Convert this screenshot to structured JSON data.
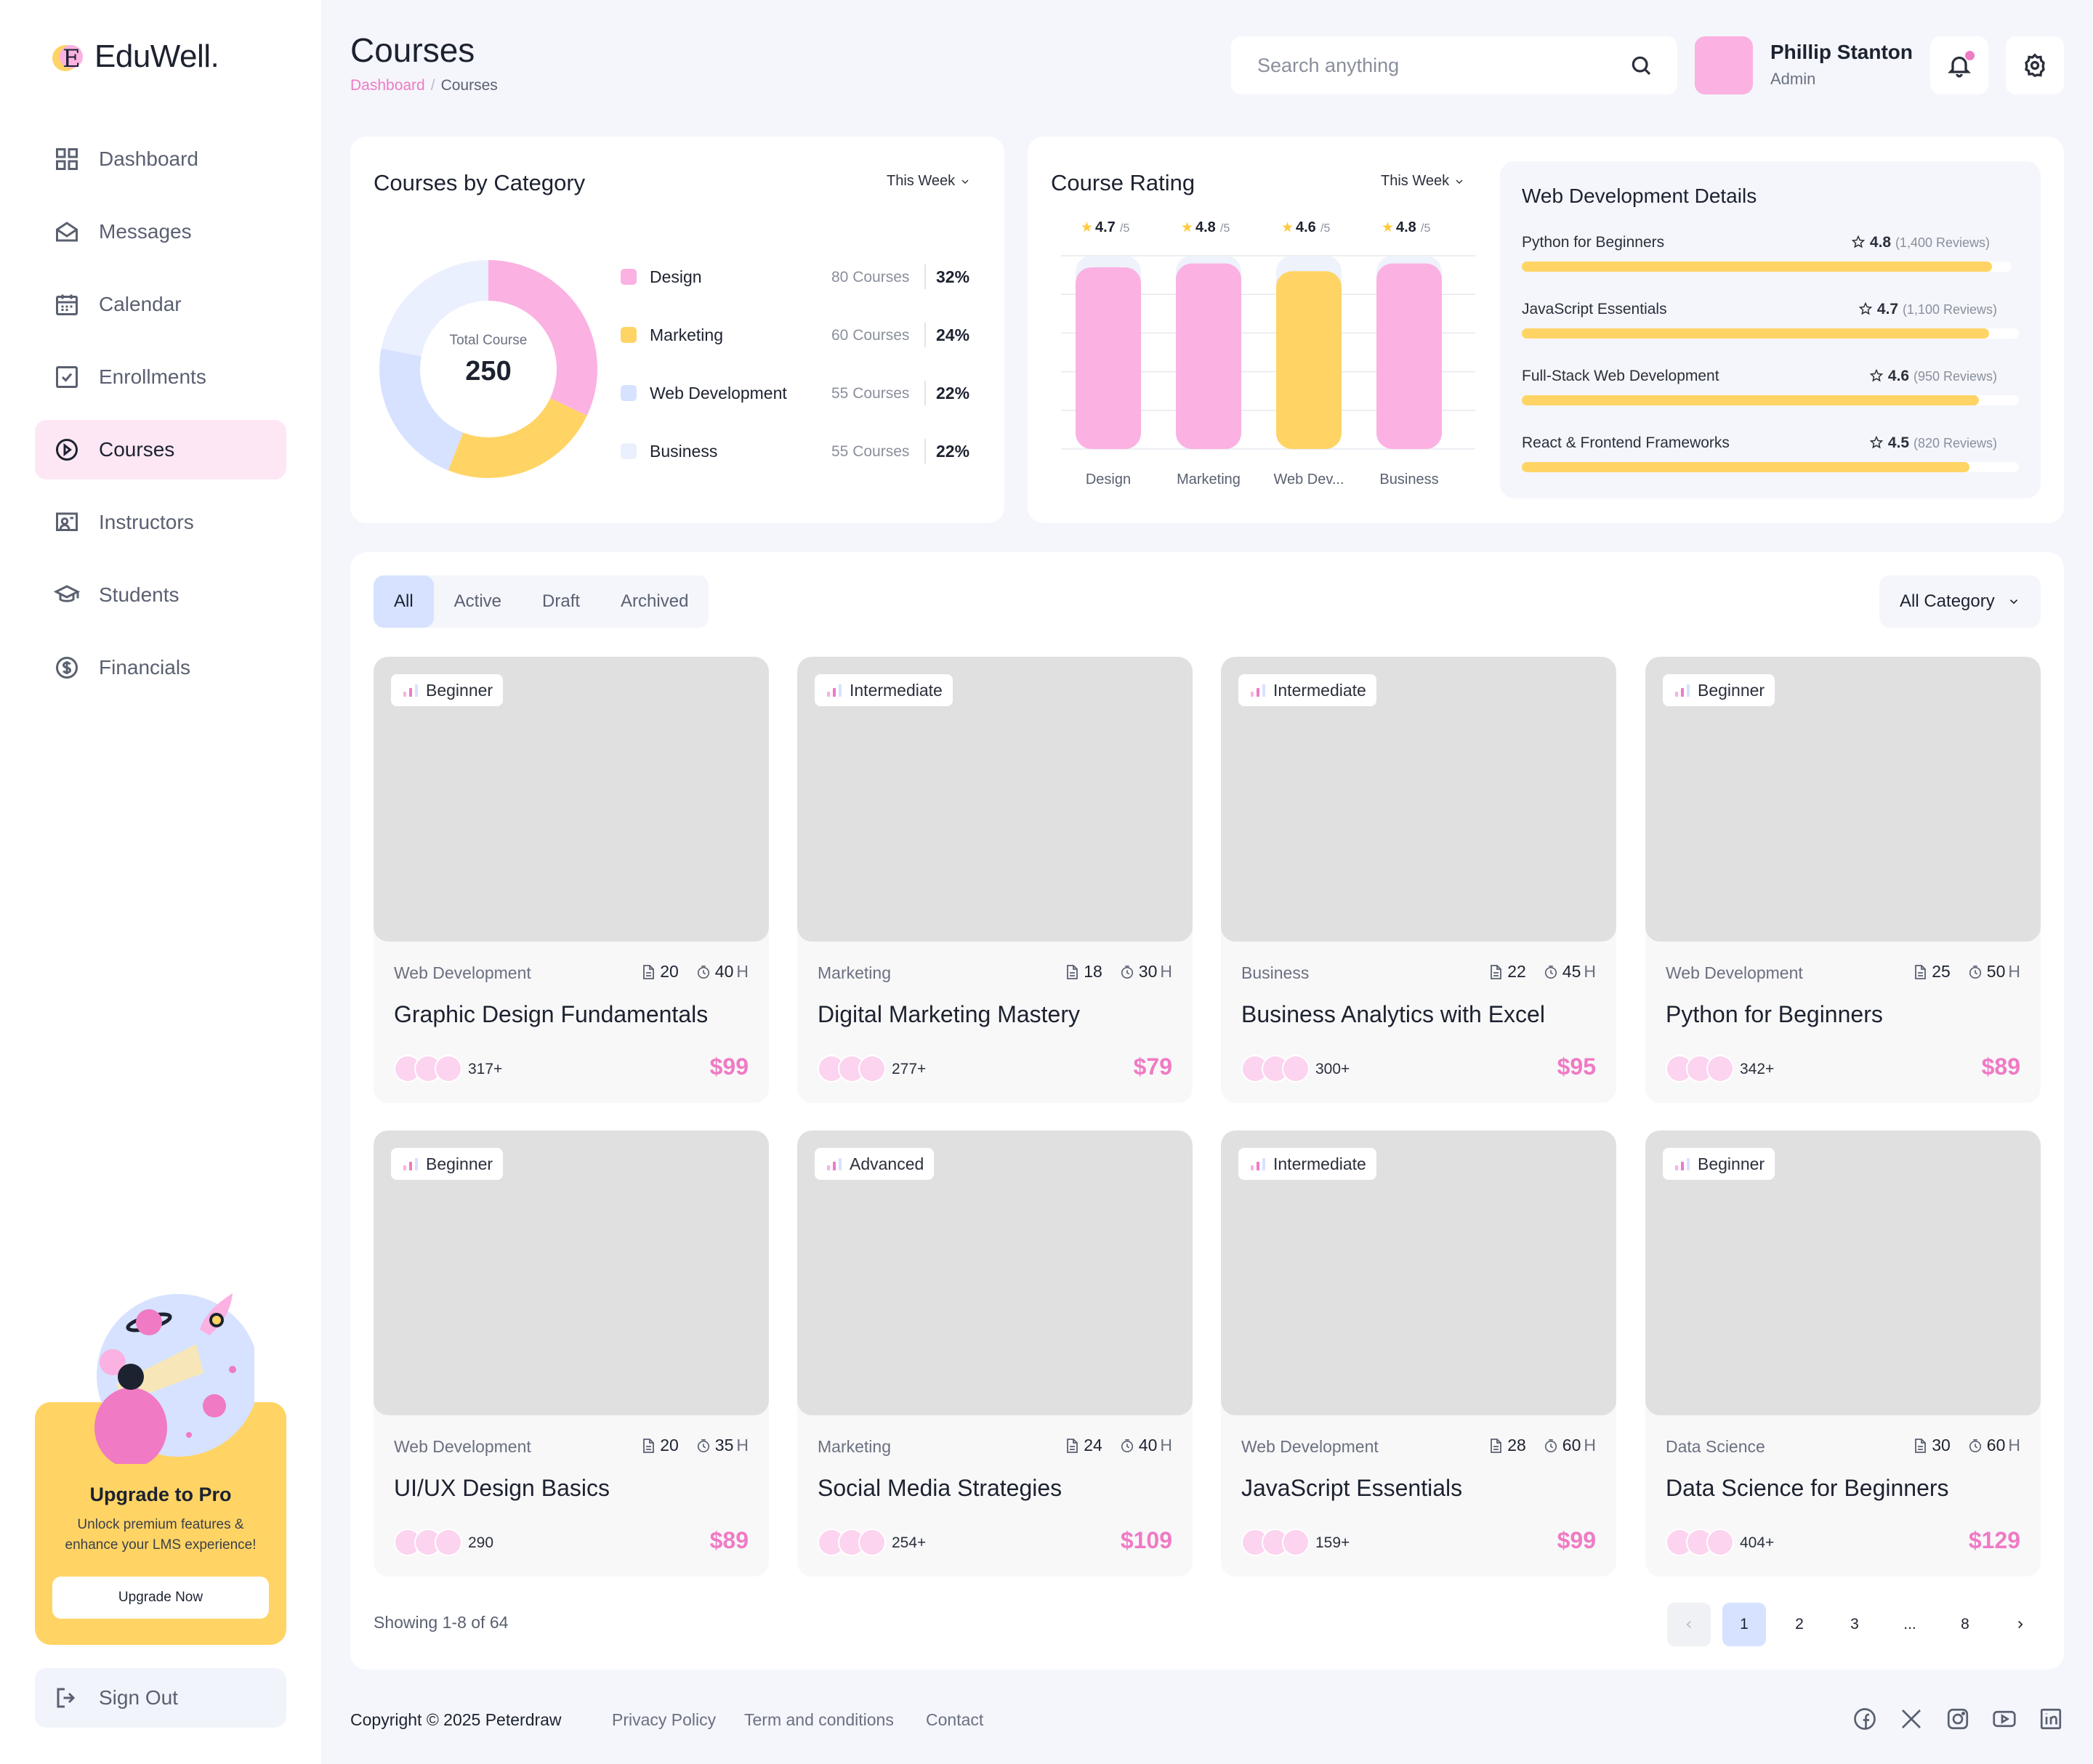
{
  "brand": {
    "name": "EduWell.",
    "mark": "E"
  },
  "nav": [
    {
      "label": "Dashboard",
      "icon": "dashboard-icon"
    },
    {
      "label": "Messages",
      "icon": "envelope-icon"
    },
    {
      "label": "Calendar",
      "icon": "calendar-icon"
    },
    {
      "label": "Enrollments",
      "icon": "checkbox-icon"
    },
    {
      "label": "Courses",
      "icon": "play-circle-icon",
      "active": true
    },
    {
      "label": "Instructors",
      "icon": "instructor-board-icon"
    },
    {
      "label": "Students",
      "icon": "graduation-cap-icon"
    },
    {
      "label": "Financials",
      "icon": "dollar-circle-icon"
    }
  ],
  "promo": {
    "title": "Upgrade to Pro",
    "desc_line1": "Unlock premium features &",
    "desc_line2": "enhance your LMS experience!",
    "button": "Upgrade Now"
  },
  "signout": {
    "label": "Sign Out"
  },
  "header": {
    "title": "Courses",
    "breadcrumb": [
      "Dashboard",
      "Courses"
    ],
    "search_placeholder": "Search anything",
    "user_name": "Phillip Stanton",
    "user_role": "Admin"
  },
  "category_card": {
    "title": "Courses by Category",
    "period": "This Week",
    "total_label": "Total Course",
    "total_value": "250",
    "items": [
      {
        "name": "Design",
        "count": "80 Courses",
        "pct": "32%",
        "value": 32,
        "color": "#fbb1e2"
      },
      {
        "name": "Marketing",
        "count": "60 Courses",
        "pct": "24%",
        "value": 24,
        "color": "#ffd465"
      },
      {
        "name": "Web Development",
        "count": "55 Courses",
        "pct": "22%",
        "value": 22,
        "color": "#d6e2ff"
      },
      {
        "name": "Business",
        "count": "55 Courses",
        "pct": "22%",
        "value": 22,
        "color": "#eaf0fd"
      }
    ]
  },
  "rating_card": {
    "title": "Course Rating",
    "period": "This Week",
    "chart_data": {
      "type": "bar",
      "categories": [
        "Design",
        "Marketing",
        "Web Dev...",
        "Business"
      ],
      "values": [
        4.7,
        4.8,
        4.6,
        4.8
      ],
      "value_labels": [
        "4.7",
        "4.8",
        "4.6",
        "4.8"
      ],
      "suffix": "/5",
      "ylim": [
        0,
        5
      ],
      "colors": [
        "#fbb1e2",
        "#fbb1e2",
        "#ffd465",
        "#fbb1e2"
      ]
    }
  },
  "details": {
    "title": "Web Development Details",
    "items": [
      {
        "name": "Python for Beginners",
        "rating": "4.8",
        "reviews": "(1,400 Reviews)",
        "progress": 0.96
      },
      {
        "name": "JavaScript Essentials",
        "rating": "4.7",
        "reviews": "(1,100 Reviews)",
        "progress": 0.94
      },
      {
        "name": "Full-Stack Web Development",
        "rating": "4.6",
        "reviews": "(950 Reviews)",
        "progress": 0.92
      },
      {
        "name": "React & Frontend Frameworks",
        "rating": "4.5",
        "reviews": "(820 Reviews)",
        "progress": 0.9
      }
    ]
  },
  "filters": {
    "tabs": [
      "All",
      "Active",
      "Draft",
      "Archived"
    ],
    "active_tab": "All",
    "category": "All Category"
  },
  "courses": [
    {
      "level": "Beginner",
      "category": "Web Development",
      "lessons": "20",
      "hours": "40",
      "title": "Graphic Design Fundamentals",
      "enrolled": "317+",
      "price": "$99"
    },
    {
      "level": "Intermediate",
      "category": "Marketing",
      "lessons": "18",
      "hours": "30",
      "title": "Digital Marketing Mastery",
      "enrolled": "277+",
      "price": "$79"
    },
    {
      "level": "Intermediate",
      "category": "Business",
      "lessons": "22",
      "hours": "45",
      "title": "Business Analytics with Excel",
      "enrolled": "300+",
      "price": "$95"
    },
    {
      "level": "Beginner",
      "category": "Web Development",
      "lessons": "25",
      "hours": "50",
      "title": "Python for Beginners",
      "enrolled": "342+",
      "price": "$89"
    },
    {
      "level": "Beginner",
      "category": "Web Development",
      "lessons": "20",
      "hours": "35",
      "title": "UI/UX Design Basics",
      "enrolled": "290",
      "price": "$89"
    },
    {
      "level": "Advanced",
      "category": "Marketing",
      "lessons": "24",
      "hours": "40",
      "title": "Social Media Strategies",
      "enrolled": "254+",
      "price": "$109"
    },
    {
      "level": "Intermediate",
      "category": "Web Development",
      "lessons": "28",
      "hours": "60",
      "title": "JavaScript Essentials",
      "enrolled": "159+",
      "price": "$99"
    },
    {
      "level": "Beginner",
      "category": "Data Science",
      "lessons": "30",
      "hours": "60",
      "title": "Data Science for Beginners",
      "enrolled": "404+",
      "price": "$129"
    }
  ],
  "hours_unit": "H",
  "pagination": {
    "showing": "Showing 1-8 of 64",
    "pages": [
      "1",
      "2",
      "3",
      "...",
      "8"
    ],
    "current": "1"
  },
  "footer": {
    "copyright": "Copyright © 2025 Peterdraw",
    "links": [
      "Privacy Policy",
      "Term and conditions",
      "Contact"
    ],
    "socials": [
      "facebook-icon",
      "x-icon",
      "instagram-icon",
      "youtube-icon",
      "linkedin-icon"
    ]
  }
}
